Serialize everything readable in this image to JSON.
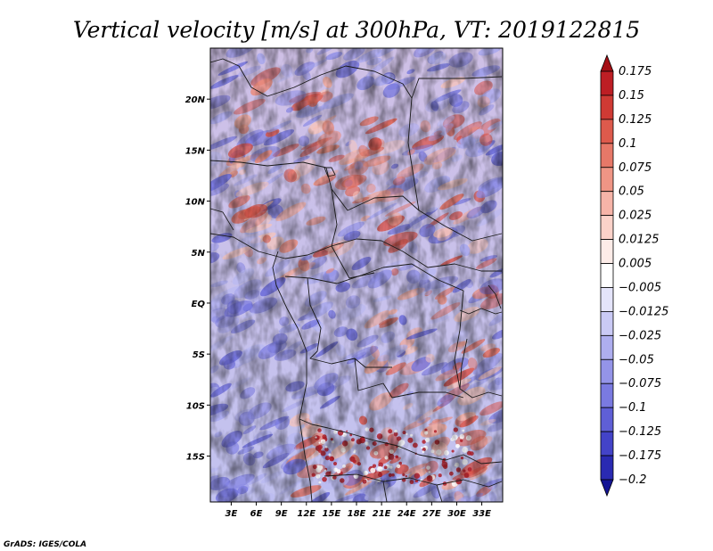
{
  "chart_data": {
    "type": "heatmap",
    "title": "Vertical velocity [m/s] at 300hPa, VT: 2019122815",
    "xlabel": "",
    "ylabel": "",
    "x_ticks": [
      "3E",
      "6E",
      "9E",
      "12E",
      "15E",
      "18E",
      "21E",
      "24E",
      "27E",
      "30E",
      "33E"
    ],
    "x_tick_values": [
      3,
      6,
      9,
      12,
      15,
      18,
      21,
      24,
      27,
      30,
      33
    ],
    "y_ticks": [
      "20N",
      "15N",
      "10N",
      "5N",
      "EQ",
      "5S",
      "10S",
      "15S"
    ],
    "y_tick_values": [
      20,
      15,
      10,
      5,
      0,
      -5,
      -10,
      -15
    ],
    "xlim": [
      0.5,
      35.5
    ],
    "ylim": [
      -19.5,
      25
    ],
    "colorbar": {
      "labels": [
        "0.175",
        "0.15",
        "0.125",
        "0.1",
        "0.075",
        "0.05",
        "0.025",
        "0.0125",
        "0.005",
        "−0.005",
        "−0.0125",
        "−0.025",
        "−0.05",
        "−0.075",
        "−0.1",
        "−0.125",
        "−0.175",
        "−0.2"
      ],
      "colors": [
        "#a50f15",
        "#bd1e24",
        "#cf3a34",
        "#dd5a4c",
        "#e67868",
        "#ef9585",
        "#f6b4a8",
        "#fbd2c9",
        "#fdece8",
        "#ffffff",
        "#e4e4fa",
        "#cacaf5",
        "#aeaeef",
        "#9494e8",
        "#7a7ae0",
        "#5f5fd6",
        "#4343c8",
        "#2a2ab2",
        "#141494"
      ]
    },
    "credit": "GrADS: IGES/COLA"
  }
}
